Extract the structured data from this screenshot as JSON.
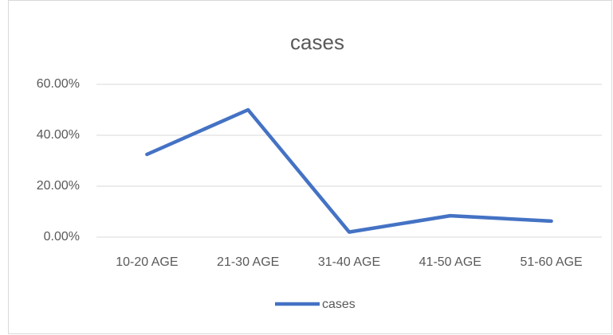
{
  "chart_data": {
    "type": "line",
    "title": "cases",
    "categories": [
      "10-20 AGE",
      "21-30 AGE",
      "31-40 AGE",
      "41-50 AGE",
      "51-60 AGE"
    ],
    "series": [
      {
        "name": "cases",
        "color": "#4472c4",
        "values": [
          32.5,
          50,
          2,
          8.4,
          6.3
        ]
      }
    ],
    "ylim": [
      0,
      60
    ],
    "yticks": [
      {
        "value": 0,
        "label": "0.00%"
      },
      {
        "value": 20,
        "label": "20.00%"
      },
      {
        "value": 40,
        "label": "40.00%"
      },
      {
        "value": 60,
        "label": "60.00%"
      }
    ],
    "grid": true,
    "legend": "bottom"
  }
}
